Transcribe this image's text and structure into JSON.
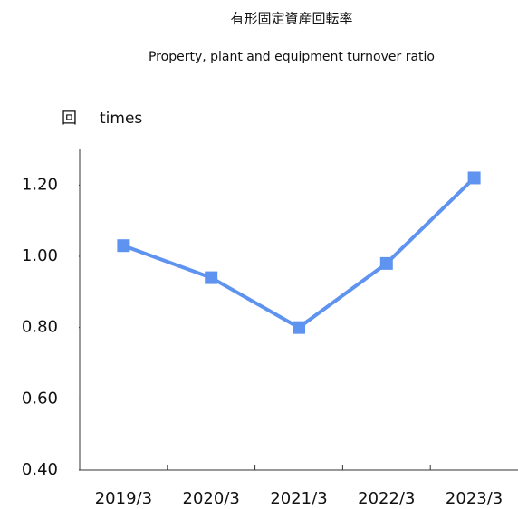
{
  "chart_data": {
    "type": "line",
    "title": "有形固定資産回転率",
    "subtitle": "Property, plant and equipment turnover ratio",
    "y_axis_label": [
      "回",
      "times"
    ],
    "categories": [
      "2019/3",
      "2020/3",
      "2021/3",
      "2022/3",
      "2023/3"
    ],
    "series": [
      {
        "name": "有形固定資産回転率",
        "color": "#5f93f0",
        "values": [
          1.03,
          0.94,
          0.8,
          0.98,
          1.22
        ]
      }
    ],
    "ylim": [
      0.4,
      1.3
    ],
    "yticks": [
      {
        "value": 0.4,
        "label": "0.40"
      },
      {
        "value": 0.6,
        "label": "0.60"
      },
      {
        "value": 0.8,
        "label": "0.80"
      },
      {
        "value": 1.0,
        "label": "1.00"
      },
      {
        "value": 1.2,
        "label": "1.20"
      }
    ],
    "grid": false
  }
}
